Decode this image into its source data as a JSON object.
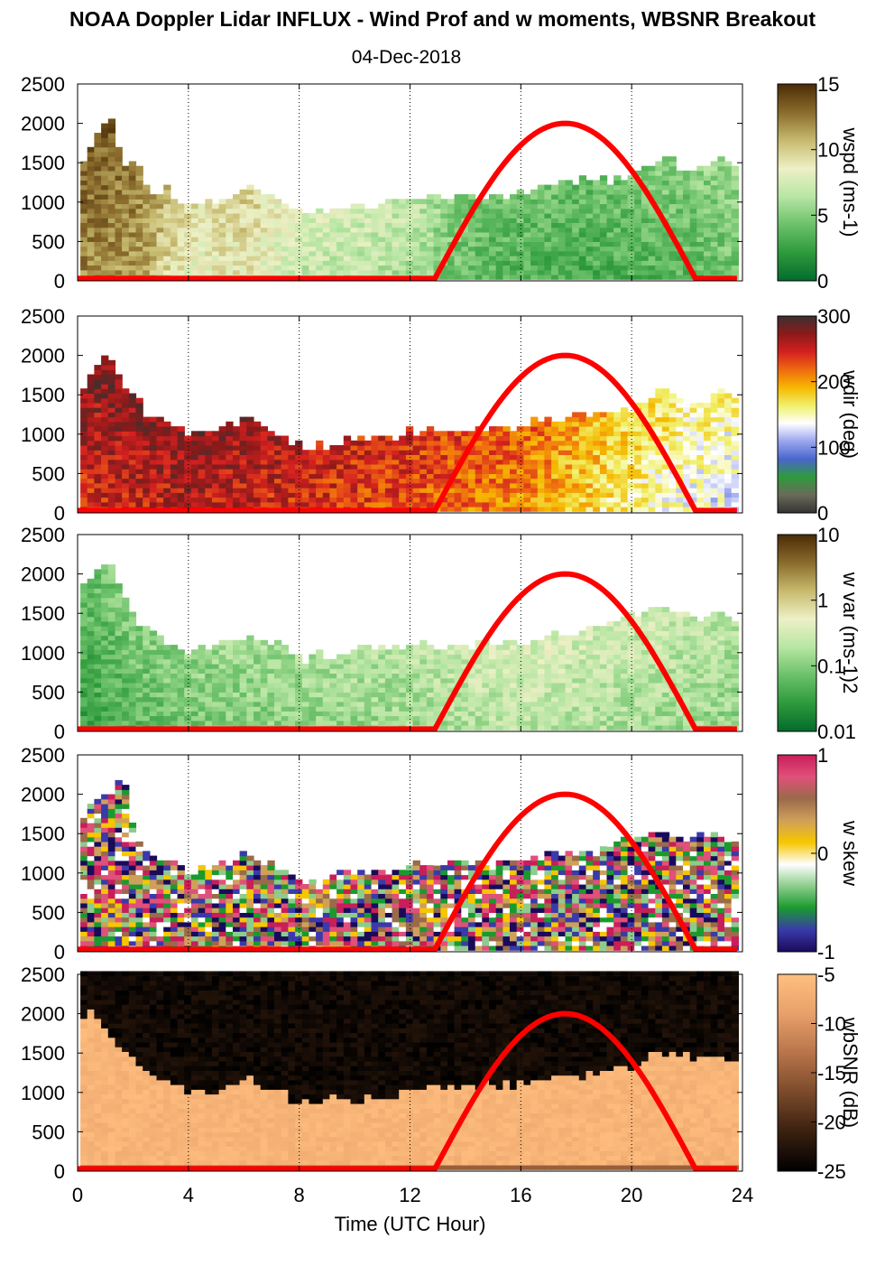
{
  "title": "NOAA Doppler Lidar INFLUX - Wind Prof and w moments, WBSNR Breakout",
  "date": "04-Dec-2018",
  "chart_data": {
    "type": "heatmap",
    "xlabel": "Time (UTC Hour)",
    "xlim": [
      0,
      24
    ],
    "xticks": [
      "0",
      "4",
      "8",
      "12",
      "16",
      "20",
      "24"
    ],
    "ylim": [
      0,
      2500
    ],
    "yticks": [
      "0",
      "500",
      "1000",
      "1500",
      "2000",
      "2500"
    ],
    "grid": "dotted vertical lines every 4 hours",
    "solar_curve": {
      "color": "#ff0000",
      "start_hour": 12.9,
      "peak_hour": 17.5,
      "end_hour": 22.3,
      "peak_value": 2000,
      "base_value": 30
    },
    "panels": [
      {
        "variable": "wspd",
        "colorbar_label": "wspd (ms-1)",
        "colorbar_ticks": [
          "15",
          "10",
          "5",
          "0"
        ],
        "colorbar_colors": [
          "#4a2c06",
          "#8a6b2c",
          "#c6ba6d",
          "#eef0c6",
          "#b8e6a4",
          "#6cc16a",
          "#2e9a3c",
          "#036b2e"
        ],
        "echo_top_m": [
          [
            0.0,
            1500
          ],
          [
            0.5,
            1800
          ],
          [
            1.0,
            2100
          ],
          [
            1.5,
            1500
          ],
          [
            2.0,
            1450
          ],
          [
            2.5,
            1100
          ],
          [
            3.0,
            1150
          ],
          [
            4.0,
            950
          ],
          [
            5.0,
            1000
          ],
          [
            6.0,
            1150
          ],
          [
            7.0,
            1000
          ],
          [
            8.0,
            800
          ],
          [
            9.0,
            850
          ],
          [
            10.0,
            900
          ],
          [
            11.0,
            950
          ],
          [
            12.0,
            1000
          ],
          [
            13.0,
            1050
          ],
          [
            14.0,
            1000
          ],
          [
            15.0,
            1050
          ],
          [
            16.0,
            1100
          ],
          [
            17.0,
            1150
          ],
          [
            18.0,
            1250
          ],
          [
            19.0,
            1250
          ],
          [
            20.0,
            1300
          ],
          [
            21.0,
            1550
          ],
          [
            22.0,
            1350
          ],
          [
            23.0,
            1500
          ],
          [
            23.8,
            1450
          ]
        ],
        "color_trend": [
          [
            0,
            0.2
          ],
          [
            2,
            0.25
          ],
          [
            4,
            0.45
          ],
          [
            6,
            0.4
          ],
          [
            8,
            0.55
          ],
          [
            10,
            0.55
          ],
          [
            12,
            0.6
          ],
          [
            14,
            0.75
          ],
          [
            18,
            0.8
          ],
          [
            22,
            0.75
          ],
          [
            24,
            0.7
          ]
        ]
      },
      {
        "variable": "wdir",
        "colorbar_label": "wdir (deg)",
        "colorbar_ticks": [
          "300",
          "200",
          "100",
          "0"
        ],
        "colorbar_colors": [
          "#3b3030",
          "#8b1a1a",
          "#d42020",
          "#ef6a10",
          "#f6b800",
          "#f0f06a",
          "#ffffff",
          "#9aa6ee",
          "#4a66cc",
          "#2e9a3c",
          "#6a6a5a",
          "#333333"
        ],
        "echo_top_m": [
          [
            0.0,
            1500
          ],
          [
            0.5,
            1800
          ],
          [
            1.0,
            2100
          ],
          [
            1.5,
            1500
          ],
          [
            2.0,
            1450
          ],
          [
            2.5,
            1100
          ],
          [
            3.0,
            1150
          ],
          [
            4.0,
            950
          ],
          [
            5.0,
            1000
          ],
          [
            6.0,
            1150
          ],
          [
            7.0,
            1000
          ],
          [
            8.0,
            800
          ],
          [
            9.0,
            850
          ],
          [
            10.0,
            900
          ],
          [
            11.0,
            950
          ],
          [
            12.0,
            1000
          ],
          [
            13.0,
            1050
          ],
          [
            14.0,
            1000
          ],
          [
            15.0,
            1050
          ],
          [
            16.0,
            1100
          ],
          [
            17.0,
            1150
          ],
          [
            18.0,
            1250
          ],
          [
            19.0,
            1250
          ],
          [
            20.0,
            1300
          ],
          [
            21.0,
            1550
          ],
          [
            22.0,
            1350
          ],
          [
            23.0,
            1500
          ],
          [
            23.8,
            1450
          ]
        ],
        "color_trend": [
          [
            0,
            0.2
          ],
          [
            4,
            0.15
          ],
          [
            8,
            0.2
          ],
          [
            12,
            0.25
          ],
          [
            16,
            0.32
          ],
          [
            19,
            0.45
          ],
          [
            22,
            0.55
          ],
          [
            24,
            0.58
          ]
        ]
      },
      {
        "variable": "w var",
        "colorbar_label": "w var (ms-1)2",
        "colorbar_ticks": [
          "10",
          "1",
          "0.1",
          "0.01"
        ],
        "colorbar_colors": [
          "#4a2c06",
          "#8a6b2c",
          "#c6ba6d",
          "#eef0c6",
          "#b8e6a4",
          "#6cc16a",
          "#2e9a3c",
          "#036b2e"
        ],
        "echo_top_m": [
          [
            0.0,
            1700
          ],
          [
            0.5,
            2050
          ],
          [
            1.0,
            2100
          ],
          [
            1.5,
            1700
          ],
          [
            2.0,
            1400
          ],
          [
            2.5,
            1250
          ],
          [
            3.0,
            1100
          ],
          [
            4.0,
            1000
          ],
          [
            5.0,
            1050
          ],
          [
            6.0,
            1200
          ],
          [
            7.0,
            1100
          ],
          [
            8.0,
            900
          ],
          [
            9.0,
            950
          ],
          [
            10.0,
            1000
          ],
          [
            11.0,
            1050
          ],
          [
            12.0,
            1050
          ],
          [
            13.0,
            1050
          ],
          [
            14.0,
            1050
          ],
          [
            15.0,
            1100
          ],
          [
            16.0,
            1100
          ],
          [
            17.0,
            1200
          ],
          [
            18.0,
            1250
          ],
          [
            19.0,
            1300
          ],
          [
            20.0,
            1450
          ],
          [
            21.0,
            1550
          ],
          [
            22.0,
            1400
          ],
          [
            23.0,
            1450
          ],
          [
            23.8,
            1350
          ]
        ],
        "color_trend": [
          [
            0,
            0.85
          ],
          [
            2,
            0.75
          ],
          [
            4,
            0.7
          ],
          [
            8,
            0.65
          ],
          [
            12,
            0.62
          ],
          [
            16,
            0.55
          ],
          [
            20,
            0.6
          ],
          [
            24,
            0.65
          ]
        ]
      },
      {
        "variable": "w skew",
        "colorbar_label": "w skew",
        "colorbar_ticks": [
          "1",
          "0",
          "-1"
        ],
        "colorbar_colors": [
          "#c81e5a",
          "#e0507a",
          "#9a6a4a",
          "#cfa05a",
          "#f6c600",
          "#ffffff",
          "#8ccc8c",
          "#1a9a2e",
          "#3a3aaa",
          "#1a0a5a"
        ],
        "echo_top_m": [
          [
            0.0,
            1600
          ],
          [
            0.5,
            1950
          ],
          [
            1.0,
            1950
          ],
          [
            1.5,
            2200
          ],
          [
            2.0,
            1350
          ],
          [
            2.5,
            1250
          ],
          [
            3.0,
            1150
          ],
          [
            4.0,
            950
          ],
          [
            5.0,
            1100
          ],
          [
            6.0,
            1200
          ],
          [
            7.0,
            1050
          ],
          [
            8.0,
            850
          ],
          [
            9.0,
            900
          ],
          [
            10.0,
            1050
          ],
          [
            11.0,
            950
          ],
          [
            12.0,
            1100
          ],
          [
            13.0,
            1100
          ],
          [
            14.0,
            1100
          ],
          [
            15.0,
            1050
          ],
          [
            16.0,
            1100
          ],
          [
            17.0,
            1200
          ],
          [
            18.0,
            1250
          ],
          [
            19.0,
            1350
          ],
          [
            20.0,
            1400
          ],
          [
            21.0,
            1500
          ],
          [
            22.0,
            1400
          ],
          [
            23.0,
            1450
          ],
          [
            23.8,
            1300
          ]
        ],
        "color_trend": "random"
      },
      {
        "variable": "wbSNR",
        "colorbar_label": "wbSNR (dB)",
        "colorbar_ticks": [
          "-5",
          "-10",
          "-15",
          "-20",
          "-25"
        ],
        "colorbar_colors": [
          "#ffbf7f",
          "#e8a06a",
          "#b8744a",
          "#7a4a2a",
          "#3a2010",
          "#000000"
        ],
        "echo_top_m": [
          [
            0.0,
            1900
          ],
          [
            0.5,
            2000
          ],
          [
            1.0,
            1700
          ],
          [
            1.5,
            1600
          ],
          [
            2.0,
            1350
          ],
          [
            2.5,
            1200
          ],
          [
            3.0,
            1100
          ],
          [
            4.0,
            1000
          ],
          [
            5.0,
            1000
          ],
          [
            6.0,
            1150
          ],
          [
            7.0,
            1000
          ],
          [
            8.0,
            800
          ],
          [
            9.0,
            900
          ],
          [
            10.0,
            850
          ],
          [
            11.0,
            950
          ],
          [
            12.0,
            1000
          ],
          [
            13.0,
            1050
          ],
          [
            14.0,
            1100
          ],
          [
            15.0,
            1050
          ],
          [
            16.0,
            1100
          ],
          [
            17.0,
            1150
          ],
          [
            18.0,
            1200
          ],
          [
            19.0,
            1250
          ],
          [
            20.0,
            1300
          ],
          [
            21.0,
            1500
          ],
          [
            22.0,
            1400
          ],
          [
            23.0,
            1450
          ],
          [
            23.8,
            1350
          ]
        ],
        "above_echo_color": "#050302",
        "color_trend": "snr"
      }
    ]
  }
}
